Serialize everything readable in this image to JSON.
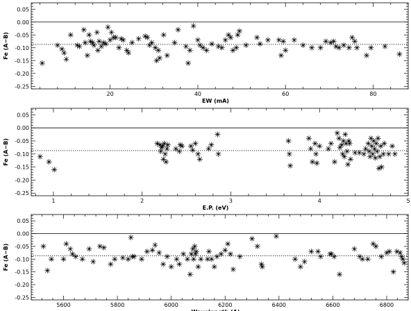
{
  "chart_data": [
    {
      "type": "scatter",
      "xlabel": "EW (mA)",
      "ylabel": "Fe (A−B)",
      "xlim": [
        2,
        88
      ],
      "ylim": [
        -0.26,
        0.075
      ],
      "xticks": [
        20,
        40,
        60,
        80
      ],
      "yticks": [
        0.05,
        0.0,
        -0.05,
        -0.1,
        -0.15,
        -0.2,
        -0.25
      ],
      "ytick_labels": [
        "0.05",
        "0.00",
        "-0.05",
        "-0.10",
        "-0.15",
        "-0.20",
        "-0.25"
      ],
      "reference_lines": [
        {
          "y": 0.0,
          "style": "solid"
        },
        {
          "y": -0.087,
          "style": "dotted"
        }
      ],
      "marker": "asterisk",
      "grid": false,
      "points": [
        [
          4.5,
          -0.16
        ],
        [
          8,
          -0.09
        ],
        [
          9,
          -0.105
        ],
        [
          9.5,
          -0.12
        ],
        [
          10,
          -0.145
        ],
        [
          11,
          -0.05
        ],
        [
          12.5,
          -0.09
        ],
        [
          13,
          -0.095
        ],
        [
          14,
          -0.03
        ],
        [
          14.3,
          -0.08
        ],
        [
          14.8,
          -0.13
        ],
        [
          15.2,
          -0.05
        ],
        [
          15.5,
          -0.075
        ],
        [
          16,
          -0.08
        ],
        [
          16.3,
          -0.09
        ],
        [
          17,
          -0.04
        ],
        [
          17.2,
          -0.11
        ],
        [
          17.5,
          -0.075
        ],
        [
          18,
          -0.095
        ],
        [
          18.5,
          -0.08
        ],
        [
          19,
          -0.085
        ],
        [
          19.5,
          -0.02
        ],
        [
          20,
          -0.07
        ],
        [
          20.3,
          -0.04
        ],
        [
          20.8,
          -0.06
        ],
        [
          21.3,
          -0.06
        ],
        [
          22,
          -0.1
        ],
        [
          22.5,
          -0.065
        ],
        [
          23,
          -0.07
        ],
        [
          23.8,
          -0.11
        ],
        [
          24.2,
          -0.12
        ],
        [
          25,
          -0.08
        ],
        [
          26.5,
          -0.065
        ],
        [
          28,
          -0.055
        ],
        [
          28.5,
          -0.06
        ],
        [
          29,
          -0.09
        ],
        [
          29.5,
          -0.08
        ],
        [
          30.3,
          -0.1
        ],
        [
          30.6,
          -0.15
        ],
        [
          31,
          -0.11
        ],
        [
          31.3,
          -0.14
        ],
        [
          32.2,
          -0.05
        ],
        [
          33,
          -0.13
        ],
        [
          34.7,
          -0.08
        ],
        [
          35.5,
          -0.03
        ],
        [
          37.3,
          -0.095
        ],
        [
          37.8,
          -0.16
        ],
        [
          38.2,
          -0.11
        ],
        [
          39,
          -0.015
        ],
        [
          40,
          -0.07
        ],
        [
          40.5,
          -0.09
        ],
        [
          41.2,
          -0.1
        ],
        [
          42,
          -0.11
        ],
        [
          43.2,
          -0.085
        ],
        [
          44.7,
          -0.095
        ],
        [
          45.5,
          -0.1
        ],
        [
          46.3,
          -0.07
        ],
        [
          47,
          -0.05
        ],
        [
          47.5,
          -0.06
        ],
        [
          48,
          -0.11
        ],
        [
          48.8,
          -0.1
        ],
        [
          49.1,
          -0.05
        ],
        [
          49.5,
          -0.035
        ],
        [
          51,
          -0.09
        ],
        [
          53.5,
          -0.06
        ],
        [
          54.2,
          -0.085
        ],
        [
          56,
          -0.07
        ],
        [
          58.5,
          -0.07
        ],
        [
          59,
          -0.13
        ],
        [
          59.5,
          -0.075
        ],
        [
          60,
          -0.11
        ],
        [
          62,
          -0.07
        ],
        [
          64,
          -0.09
        ],
        [
          66,
          -0.1
        ],
        [
          68,
          -0.1
        ],
        [
          69.2,
          -0.075
        ],
        [
          70.3,
          -0.08
        ],
        [
          71,
          -0.075
        ],
        [
          71.5,
          -0.095
        ],
        [
          72.2,
          -0.1
        ],
        [
          73.3,
          -0.09
        ],
        [
          74.5,
          -0.1
        ],
        [
          75.2,
          -0.06
        ],
        [
          75.8,
          -0.075
        ],
        [
          76.3,
          -0.1
        ],
        [
          78.5,
          -0.13
        ],
        [
          79.5,
          -0.1
        ],
        [
          82.7,
          -0.095
        ],
        [
          86,
          -0.125
        ]
      ]
    },
    {
      "type": "scatter",
      "xlabel": "E.P. (eV)",
      "ylabel": "Fe (A−B)",
      "xlim": [
        0.75,
        5.0
      ],
      "ylim": [
        -0.26,
        0.075
      ],
      "xticks": [
        1,
        2,
        3,
        4,
        5
      ],
      "yticks": [
        0.05,
        0.0,
        -0.05,
        -0.1,
        -0.15,
        -0.2,
        -0.25
      ],
      "ytick_labels": [
        "0.05",
        "0.00",
        "-0.05",
        "-0.10",
        "-0.15",
        "-0.20",
        "-0.25"
      ],
      "reference_lines": [
        {
          "y": 0.0,
          "style": "solid"
        },
        {
          "y": -0.087,
          "style": "dotted"
        }
      ],
      "marker": "asterisk",
      "grid": false,
      "points": [
        [
          0.85,
          -0.11
        ],
        [
          0.95,
          -0.13
        ],
        [
          1.01,
          -0.16
        ],
        [
          2.17,
          -0.06
        ],
        [
          2.2,
          -0.065
        ],
        [
          2.21,
          -0.09
        ],
        [
          2.22,
          -0.075
        ],
        [
          2.23,
          -0.07
        ],
        [
          2.24,
          -0.12
        ],
        [
          2.25,
          -0.06
        ],
        [
          2.26,
          -0.1
        ],
        [
          2.27,
          -0.13
        ],
        [
          2.28,
          -0.08
        ],
        [
          2.29,
          -0.065
        ],
        [
          2.38,
          -0.08
        ],
        [
          2.42,
          -0.09
        ],
        [
          2.43,
          -0.065
        ],
        [
          2.45,
          -0.07
        ],
        [
          2.55,
          -0.07
        ],
        [
          2.57,
          -0.085
        ],
        [
          2.6,
          -0.06
        ],
        [
          2.63,
          -0.1
        ],
        [
          2.65,
          -0.12
        ],
        [
          2.75,
          -0.08
        ],
        [
          2.78,
          -0.065
        ],
        [
          2.85,
          -0.025
        ],
        [
          2.86,
          -0.1
        ],
        [
          3.65,
          -0.05
        ],
        [
          3.66,
          -0.1
        ],
        [
          3.67,
          -0.145
        ],
        [
          3.88,
          -0.04
        ],
        [
          3.9,
          -0.08
        ],
        [
          3.92,
          -0.13
        ],
        [
          3.95,
          -0.06
        ],
        [
          3.96,
          -0.1
        ],
        [
          3.97,
          -0.135
        ],
        [
          4.0,
          -0.07
        ],
        [
          4.1,
          -0.08
        ],
        [
          4.13,
          -0.06
        ],
        [
          4.17,
          -0.13
        ],
        [
          4.2,
          -0.02
        ],
        [
          4.22,
          -0.04
        ],
        [
          4.23,
          -0.075
        ],
        [
          4.25,
          -0.065
        ],
        [
          4.26,
          -0.1
        ],
        [
          4.27,
          -0.05
        ],
        [
          4.28,
          -0.11
        ],
        [
          4.29,
          -0.025
        ],
        [
          4.3,
          -0.06
        ],
        [
          4.31,
          -0.09
        ],
        [
          4.32,
          -0.14
        ],
        [
          4.33,
          -0.05
        ],
        [
          4.34,
          -0.06
        ],
        [
          4.35,
          -0.12
        ],
        [
          4.4,
          -0.095
        ],
        [
          4.45,
          -0.095
        ],
        [
          4.5,
          -0.1
        ],
        [
          4.52,
          -0.08
        ],
        [
          4.55,
          -0.06
        ],
        [
          4.56,
          -0.09
        ],
        [
          4.57,
          -0.11
        ],
        [
          4.58,
          -0.04
        ],
        [
          4.59,
          -0.07
        ],
        [
          4.6,
          -0.1
        ],
        [
          4.61,
          -0.05
        ],
        [
          4.62,
          -0.08
        ],
        [
          4.63,
          -0.115
        ],
        [
          4.64,
          -0.06
        ],
        [
          4.65,
          -0.09
        ],
        [
          4.66,
          -0.04
        ],
        [
          4.67,
          -0.155
        ],
        [
          4.68,
          -0.11
        ],
        [
          4.69,
          -0.07
        ],
        [
          4.7,
          -0.15
        ],
        [
          4.72,
          -0.1
        ],
        [
          4.73,
          -0.06
        ],
        [
          4.78,
          -0.1
        ],
        [
          4.82,
          -0.07
        ],
        [
          4.85,
          -0.1
        ]
      ]
    },
    {
      "type": "scatter",
      "xlabel": "Wavelength (A)",
      "ylabel": "Fe (A−B)",
      "xlim": [
        5480,
        6880
      ],
      "ylim": [
        -0.26,
        0.075
      ],
      "xticks": [
        5600,
        5800,
        6000,
        6200,
        6400,
        6600,
        6800
      ],
      "yticks": [
        0.05,
        0.0,
        -0.05,
        -0.1,
        -0.15,
        -0.2,
        -0.25
      ],
      "ytick_labels": [
        "0.05",
        "0.00",
        "-0.05",
        "-0.10",
        "-0.15",
        "-0.20",
        "-0.25"
      ],
      "reference_lines": [
        {
          "y": 0.0,
          "style": "solid"
        },
        {
          "y": -0.087,
          "style": "dotted"
        }
      ],
      "marker": "asterisk",
      "grid": false,
      "points": [
        [
          5525,
          -0.05
        ],
        [
          5540,
          -0.145
        ],
        [
          5555,
          -0.1
        ],
        [
          5600,
          -0.1
        ],
        [
          5610,
          -0.04
        ],
        [
          5625,
          -0.06
        ],
        [
          5633,
          -0.08
        ],
        [
          5645,
          -0.09
        ],
        [
          5670,
          -0.1
        ],
        [
          5695,
          -0.06
        ],
        [
          5710,
          -0.11
        ],
        [
          5735,
          -0.05
        ],
        [
          5750,
          -0.055
        ],
        [
          5775,
          -0.12
        ],
        [
          5790,
          -0.1
        ],
        [
          5820,
          -0.095
        ],
        [
          5840,
          -0.1
        ],
        [
          5850,
          -0.015
        ],
        [
          5855,
          -0.09
        ],
        [
          5862,
          -0.09
        ],
        [
          5890,
          -0.1
        ],
        [
          5910,
          -0.07
        ],
        [
          5930,
          -0.065
        ],
        [
          5940,
          -0.045
        ],
        [
          5955,
          -0.075
        ],
        [
          5970,
          -0.12
        ],
        [
          5985,
          -0.09
        ],
        [
          6000,
          -0.13
        ],
        [
          6020,
          -0.1
        ],
        [
          6030,
          -0.12
        ],
        [
          6045,
          -0.08
        ],
        [
          6060,
          -0.1
        ],
        [
          6070,
          -0.16
        ],
        [
          6075,
          -0.08
        ],
        [
          6080,
          -0.06
        ],
        [
          6083,
          -0.1
        ],
        [
          6087,
          -0.05
        ],
        [
          6090,
          -0.08
        ],
        [
          6093,
          -0.07
        ],
        [
          6100,
          -0.13
        ],
        [
          6110,
          -0.1
        ],
        [
          6135,
          -0.1
        ],
        [
          6140,
          -0.07
        ],
        [
          6150,
          -0.1
        ],
        [
          6160,
          -0.13
        ],
        [
          6170,
          -0.09
        ],
        [
          6185,
          -0.08
        ],
        [
          6200,
          -0.065
        ],
        [
          6210,
          -0.04
        ],
        [
          6220,
          -0.08
        ],
        [
          6230,
          -0.14
        ],
        [
          6255,
          -0.09
        ],
        [
          6300,
          -0.02
        ],
        [
          6320,
          -0.05
        ],
        [
          6335,
          -0.12
        ],
        [
          6338,
          -0.13
        ],
        [
          6390,
          -0.01
        ],
        [
          6460,
          -0.1
        ],
        [
          6480,
          -0.13
        ],
        [
          6495,
          -0.11
        ],
        [
          6520,
          -0.07
        ],
        [
          6545,
          -0.07
        ],
        [
          6555,
          -0.09
        ],
        [
          6590,
          -0.08
        ],
        [
          6595,
          -0.08
        ],
        [
          6605,
          -0.09
        ],
        [
          6625,
          -0.16
        ],
        [
          6680,
          -0.06
        ],
        [
          6700,
          -0.09
        ],
        [
          6710,
          -0.1
        ],
        [
          6730,
          -0.1
        ],
        [
          6750,
          -0.04
        ],
        [
          6760,
          -0.05
        ],
        [
          6780,
          -0.09
        ],
        [
          6800,
          -0.075
        ],
        [
          6810,
          -0.07
        ],
        [
          6825,
          -0.15
        ],
        [
          6838,
          -0.07
        ],
        [
          6850,
          -0.075
        ],
        [
          6855,
          -0.09
        ],
        [
          6860,
          -0.1
        ],
        [
          6865,
          -0.115
        ]
      ]
    }
  ]
}
